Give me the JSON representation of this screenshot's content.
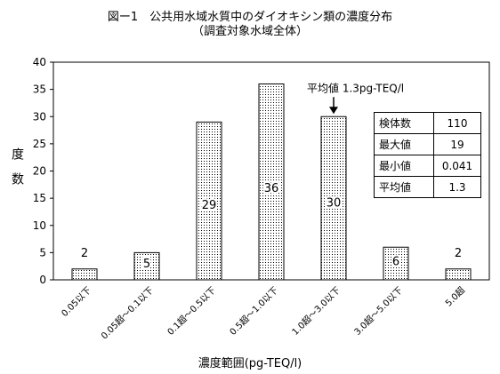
{
  "chart_data": {
    "type": "bar",
    "title": "図ー1　公共用水域水質中のダイオキシン類の濃度分布",
    "subtitle": "（調査対象水域全体）",
    "xlabel": "濃度範囲(pg-TEQ/l)",
    "ylabel": "度　数",
    "ylim": [
      0,
      40
    ],
    "yticks": [
      0,
      5,
      10,
      15,
      20,
      25,
      30,
      35,
      40
    ],
    "grid": false,
    "categories": [
      "0.05以下",
      "0.05超～0.1以下",
      "0.1超～0.5以下",
      "0.5超～1.0以下",
      "1.0超～3.0以下",
      "3.0超～5.0以下",
      "5.0超"
    ],
    "values": [
      2,
      5,
      29,
      36,
      30,
      6,
      2
    ],
    "annotation": "平均値 1.3pg-TEQ/l",
    "stats_table": [
      {
        "label": "検体数",
        "value": "110"
      },
      {
        "label": "最大値",
        "value": "19"
      },
      {
        "label": "最小値",
        "value": "0.041"
      },
      {
        "label": "平均値",
        "value": "1.3"
      }
    ],
    "colors": {
      "bar_fill": "#ffffff",
      "bar_stipple": "#000000"
    }
  }
}
